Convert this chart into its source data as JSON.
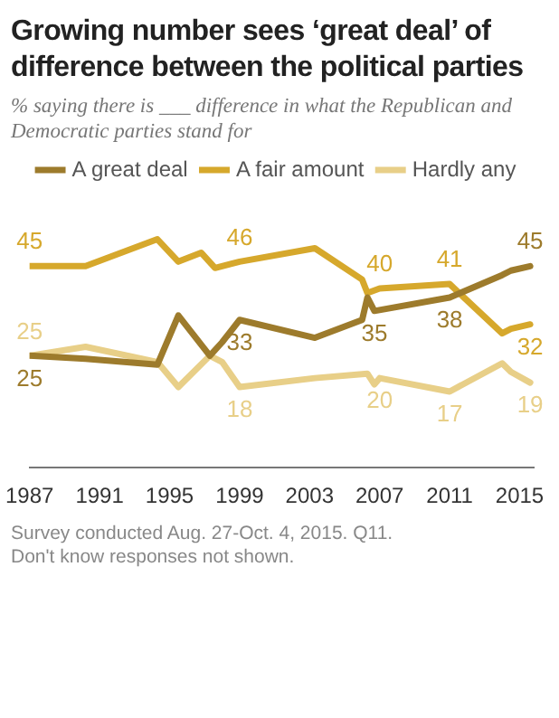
{
  "chart_data": {
    "type": "line",
    "title": "Growing number sees ‘great deal’ of difference between the political parties",
    "subtitle": "% saying there is ___ difference in what the Republican and Democratic parties stand for",
    "xlim": [
      1987,
      2015.8
    ],
    "xticks": [
      1987,
      1991,
      1995,
      1999,
      2003,
      2007,
      2011,
      2015
    ],
    "grid": false,
    "legend": "top",
    "marker": "none",
    "series": [
      {
        "name": "A great deal",
        "color": "#9d7b2c",
        "x": [
          1987,
          1990.2,
          1994.3,
          1995.5,
          1997.3,
          1998,
          1999,
          2003.3,
          2006,
          2006.3,
          2006.7,
          2011,
          2014,
          2014.5,
          2015.6
        ],
        "values": [
          25,
          24.3,
          23,
          34,
          25,
          28,
          33,
          29,
          33,
          38,
          35,
          38,
          43,
          44,
          45
        ],
        "value_labels": [
          "25",
          null,
          null,
          null,
          null,
          null,
          "33",
          null,
          null,
          null,
          "35",
          "38",
          null,
          null,
          "45"
        ]
      },
      {
        "name": "A fair amount",
        "color": "#d6a82c",
        "x": [
          1987,
          1990.2,
          1994.3,
          1995.5,
          1996.8,
          1997.6,
          1999,
          2003.3,
          2006,
          2006.3,
          2007,
          2011,
          2014,
          2014.5,
          2015.6
        ],
        "values": [
          45,
          45,
          51,
          46,
          48,
          44.6,
          46,
          49,
          42,
          39,
          40,
          41,
          30,
          31,
          32
        ],
        "value_labels": [
          "45",
          null,
          null,
          null,
          null,
          null,
          "46",
          null,
          null,
          null,
          "40",
          "41",
          null,
          null,
          "32"
        ]
      },
      {
        "name": "Hardly any",
        "color": "#e8cf88",
        "x": [
          1987,
          1990.2,
          1994.3,
          1995.5,
          1997.3,
          1998,
          1999,
          2003.3,
          2006.3,
          2006.7,
          2007,
          2011,
          2014,
          2014.5,
          2015.6
        ],
        "values": [
          25,
          27,
          23.6,
          18,
          25,
          23.6,
          18,
          20,
          21,
          18.6,
          20,
          17,
          23.3,
          21.4,
          19
        ],
        "value_labels": [
          "25",
          null,
          null,
          null,
          null,
          null,
          "18",
          null,
          null,
          null,
          "20",
          "17",
          null,
          null,
          "19"
        ]
      }
    ],
    "annotations": [
      "Survey conducted Aug. 27-Oct. 4, 2015. Q11.",
      "Don't know responses not shown."
    ]
  }
}
